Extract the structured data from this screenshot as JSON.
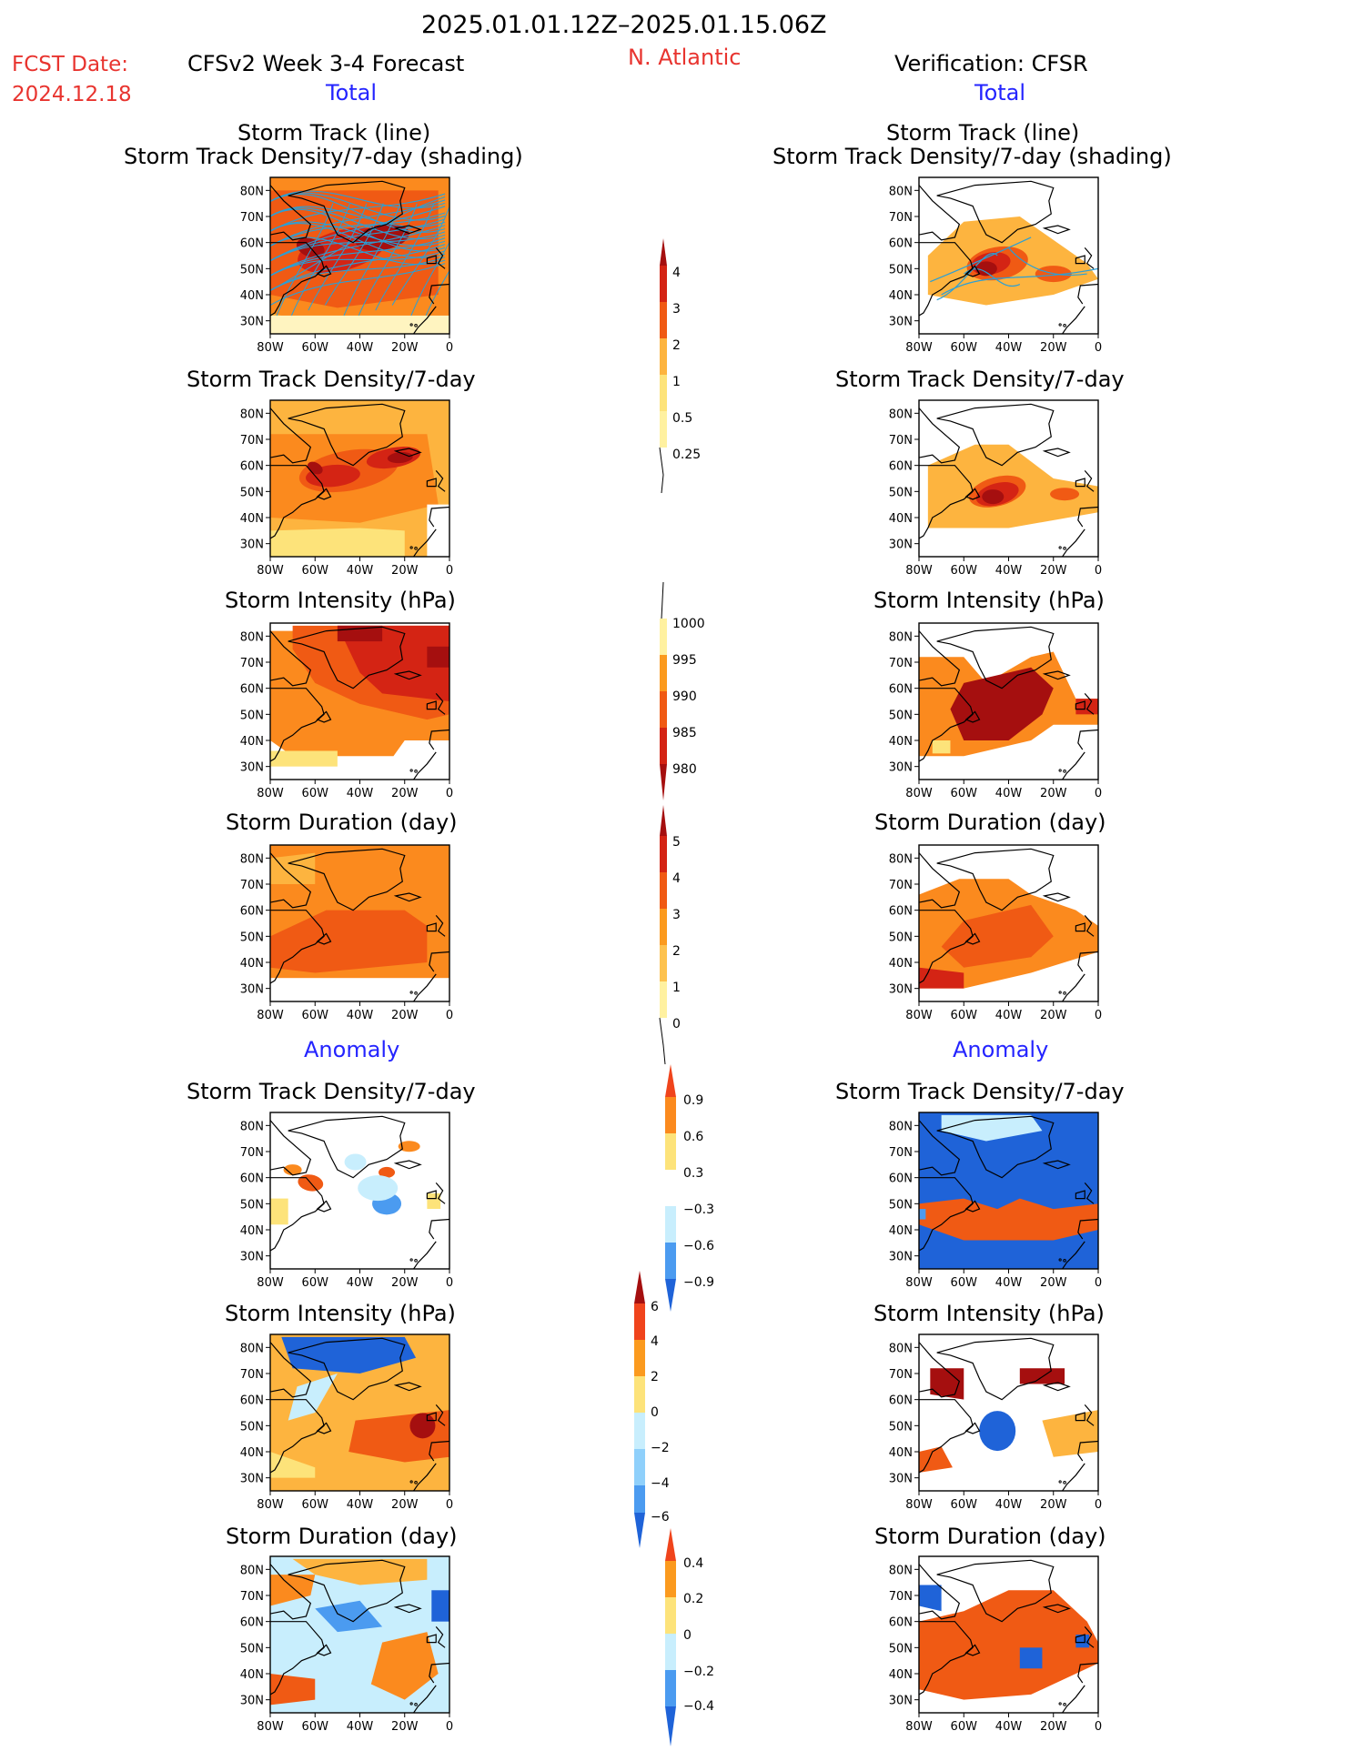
{
  "header": {
    "period": "2025.01.01.12Z–2025.01.15.06Z",
    "fcst_label": "FCST Date:",
    "fcst_date": "2024.12.18",
    "region": "N. Atlantic",
    "left_title": "CFSv2 Week 3-4 Forecast",
    "right_title": "Verification: CFSR",
    "total_label": "Total",
    "anomaly_label": "Anomaly"
  },
  "axes": {
    "lat_ticks": [
      "80N",
      "70N",
      "60N",
      "50N",
      "40N",
      "30N"
    ],
    "lon_ticks": [
      "80W",
      "60W",
      "40W",
      "20W",
      "0"
    ]
  },
  "panel_titles": {
    "track_line": "Storm Track (line)",
    "track_shading": "Storm Track Density/7-day (shading)",
    "density": "Storm Track Density/7-day",
    "intensity": "Storm Intensity (hPa)",
    "duration": "Storm Duration (day)"
  },
  "colorbars": {
    "density": [
      "4",
      "3",
      "2",
      "1",
      "0.5",
      "0.25"
    ],
    "intensity": [
      "1000",
      "995",
      "990",
      "985",
      "980"
    ],
    "duration": [
      "5",
      "4",
      "3",
      "2",
      "1",
      "0"
    ],
    "density_anom": [
      "0.9",
      "0.6",
      "0.3",
      "−0.3",
      "−0.6",
      "−0.9"
    ],
    "intensity_anom": [
      "6",
      "4",
      "2",
      "0",
      "−2",
      "−4",
      "−6"
    ],
    "duration_anom": [
      "0.4",
      "0.2",
      "0",
      "−0.2",
      "−0.4"
    ]
  },
  "colors": {
    "title_red": "#e8342f",
    "label_blue": "#2424ff",
    "warm_scale": [
      "#fff7b3",
      "#fde37a",
      "#fdb43f",
      "#fb8a1e",
      "#f05a14",
      "#d42414",
      "#a50f0f"
    ],
    "cool_scale": [
      "#c8eefd",
      "#8fd0fb",
      "#4b9bf0",
      "#1f63d8"
    ],
    "track_line": "#2a9fd6",
    "coast": "#000000"
  }
}
